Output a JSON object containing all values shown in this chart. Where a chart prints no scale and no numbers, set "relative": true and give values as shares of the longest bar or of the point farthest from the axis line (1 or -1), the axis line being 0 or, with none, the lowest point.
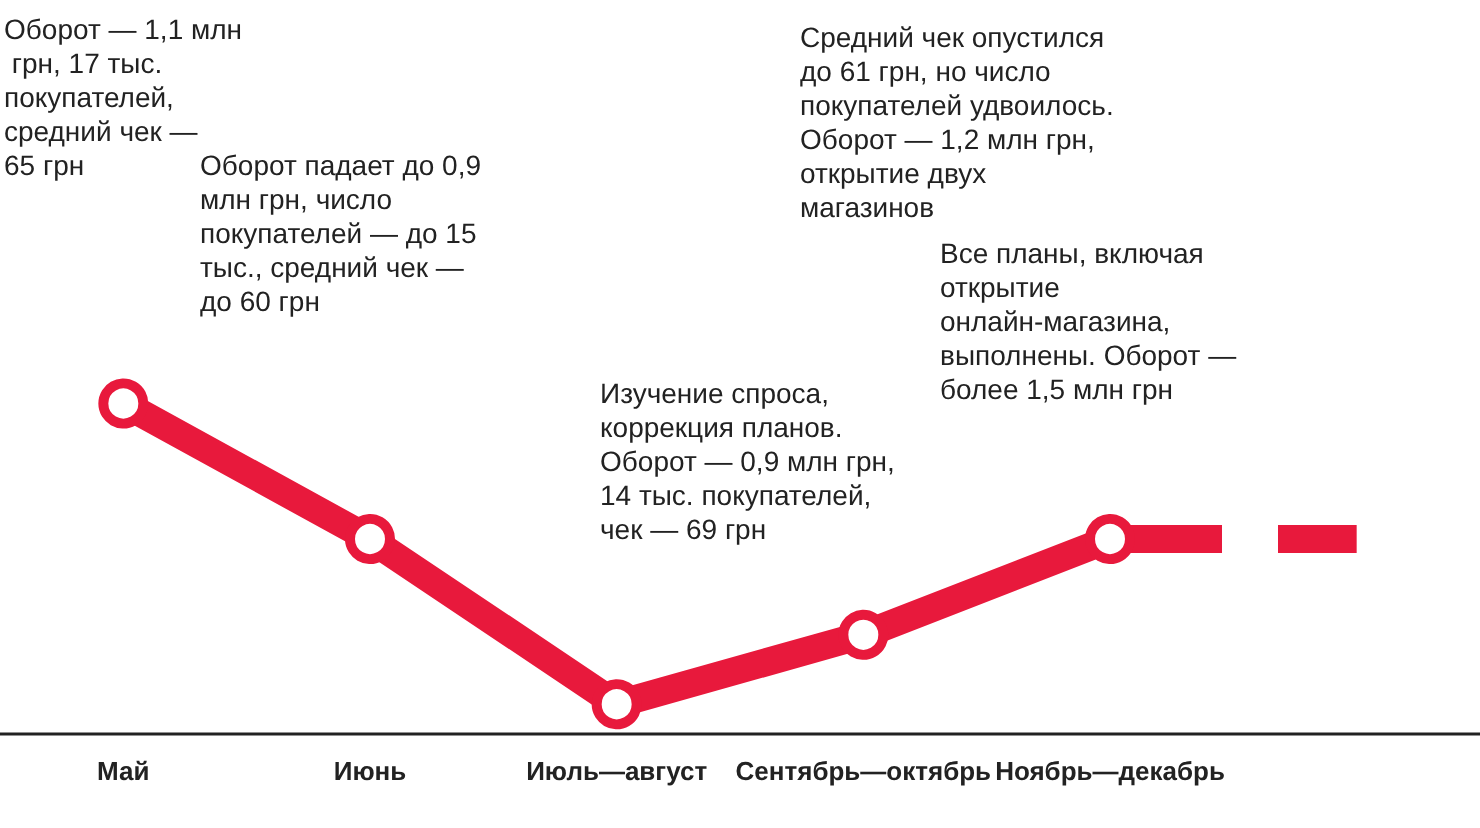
{
  "chart_data": {
    "type": "line",
    "relative": true,
    "categories": [
      "Май",
      "Июнь",
      "Июль—август",
      "Сентябрь—октябрь",
      "Ноябрь—декабрь",
      null
    ],
    "series": [
      {
        "color": "#e8193c",
        "values": [
          1,
          0.59,
          0.09,
          0.3,
          0.59,
          null
        ],
        "marker": "circle",
        "line_style": "solid"
      },
      {
        "color": "#e8193c",
        "values": [
          null,
          null,
          null,
          null,
          0.59,
          0.59
        ],
        "marker": "none",
        "line_style": "dashed"
      }
    ],
    "annotations": [
      "Оборот — 1,1 млн грн, 17 тыс. покупателей, средний чек — 65 грн",
      "Оборот падает до 0,9 млн грн, число покупателей — до 15 тыс., средний чек — до 60 грн",
      "Изучение спроса, коррекция планов. Оборот — 0,9 млн грн, 14 тыс. покупателей, чек — 69 грн",
      "Средний чек опустился до 61 грн, но число покупателей удвоилось. Оборот — 1,2 млн грн, открытие двух магазинов",
      "Все планы, включая открытие онлайн-магазина, выполнены. Оборот — более 1,5 млн грн"
    ],
    "grid": false
  }
}
